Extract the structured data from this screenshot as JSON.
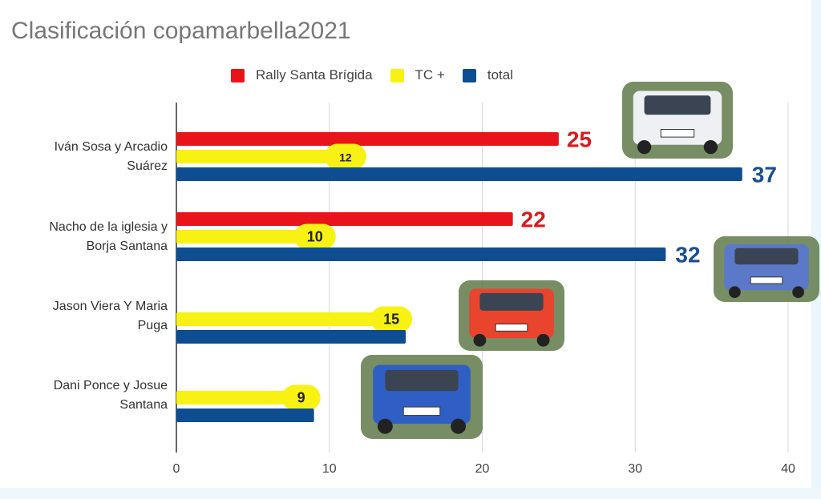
{
  "chart_data": {
    "type": "bar",
    "orientation": "horizontal",
    "title": "Clasificación copamarbella2021",
    "categories": [
      [
        "Iván Sosa y Arcadio",
        "Suárez"
      ],
      [
        "Nacho de la iglesia y",
        "Borja Santana"
      ],
      [
        "Jason Viera Y Maria",
        "Puga"
      ],
      [
        "Dani Ponce y Josue",
        "Santana"
      ]
    ],
    "series": [
      {
        "name": "Rally Santa Brígida",
        "color": "#e8141a",
        "values": [
          25,
          22,
          null,
          null
        ]
      },
      {
        "name": "TC +",
        "color": "#f7f214",
        "values": [
          12,
          10,
          15,
          9
        ]
      },
      {
        "name": "total",
        "color": "#0f4d92",
        "values": [
          37,
          32,
          15,
          9
        ]
      }
    ],
    "data_labels": {
      "Rally Santa Brígida": [
        "25",
        "22",
        null,
        null
      ],
      "TC +": [
        "12",
        "10",
        "15",
        "9"
      ],
      "total": [
        "37",
        "32",
        null,
        null
      ]
    },
    "xlim": [
      0,
      40
    ],
    "xticks": [
      "0",
      "10",
      "20",
      "30",
      "40"
    ],
    "grid": true,
    "legend_position": "top"
  }
}
